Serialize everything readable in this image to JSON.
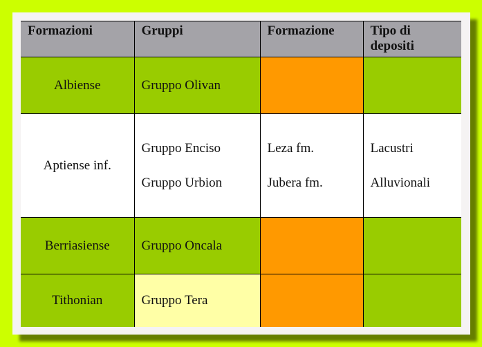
{
  "colors": {
    "background": "#ccff00",
    "header": "#a4a3a8",
    "green": "#99cc00",
    "orange": "#ff9900",
    "yellow": "#ffffa6"
  },
  "headers": [
    "Formazioni",
    "Gruppi",
    "Formazione",
    "Tipo di depositi"
  ],
  "rows": [
    {
      "formazioni": "Albiense",
      "gruppi": [
        "Gruppo Olivan"
      ],
      "formazione": [],
      "depositi": []
    },
    {
      "formazioni": "Aptiense inf.",
      "gruppi": [
        "Gruppo Enciso",
        "Gruppo Urbion"
      ],
      "formazione": [
        "Leza fm.",
        "Jubera fm."
      ],
      "depositi": [
        "Lacustri",
        "Alluvionali"
      ]
    },
    {
      "formazioni": "Berriasiense",
      "gruppi": [
        "Gruppo Oncala"
      ],
      "formazione": [],
      "depositi": []
    },
    {
      "formazioni": "Tithonian",
      "gruppi": [
        "Gruppo Tera"
      ],
      "formazione": [],
      "depositi": []
    }
  ]
}
